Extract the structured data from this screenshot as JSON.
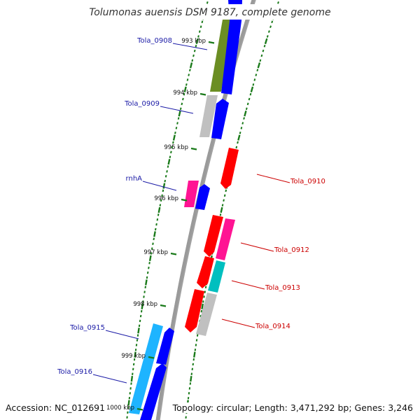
{
  "title": "Tolumonas auensis DSM 9187, complete genome",
  "footer": {
    "accession": "Accession: NC_012691",
    "topology": "Topology: circular; Length: 3,471,292 bp; Genes: 3,246"
  },
  "colors": {
    "forward_cds": "#0000ff",
    "reverse_cds": "#ff0000",
    "label_blue": "#1a1aa6",
    "label_red": "#cc0000",
    "backbone": "#888888",
    "tick": "#1a7a1a",
    "gc_olive": "#6b8e23",
    "gray_feature": "#bfbfbf",
    "magenta_feature": "#ff1493",
    "cyan_feature": "#00bfbf",
    "sky_feature": "#1eb4ff"
  },
  "ticks": [
    {
      "label": "993 kbp"
    },
    {
      "label": "994 kbp"
    },
    {
      "label": "995 kbp"
    },
    {
      "label": "996 kbp"
    },
    {
      "label": "997 kbp"
    },
    {
      "label": "998 kbp"
    },
    {
      "label": "999 kbp"
    },
    {
      "label": "1000 kbp"
    }
  ],
  "gene_labels": [
    {
      "text": "Tola_0908",
      "strand": "forward"
    },
    {
      "text": "Tola_0909",
      "strand": "forward"
    },
    {
      "text": "rnhA",
      "strand": "forward"
    },
    {
      "text": "Tola_0910",
      "strand": "reverse"
    },
    {
      "text": "Tola_0912",
      "strand": "reverse"
    },
    {
      "text": "Tola_0913",
      "strand": "reverse"
    },
    {
      "text": "Tola_0914",
      "strand": "reverse"
    },
    {
      "text": "Tola_0915",
      "strand": "forward"
    },
    {
      "text": "Tola_0916",
      "strand": "forward"
    }
  ]
}
